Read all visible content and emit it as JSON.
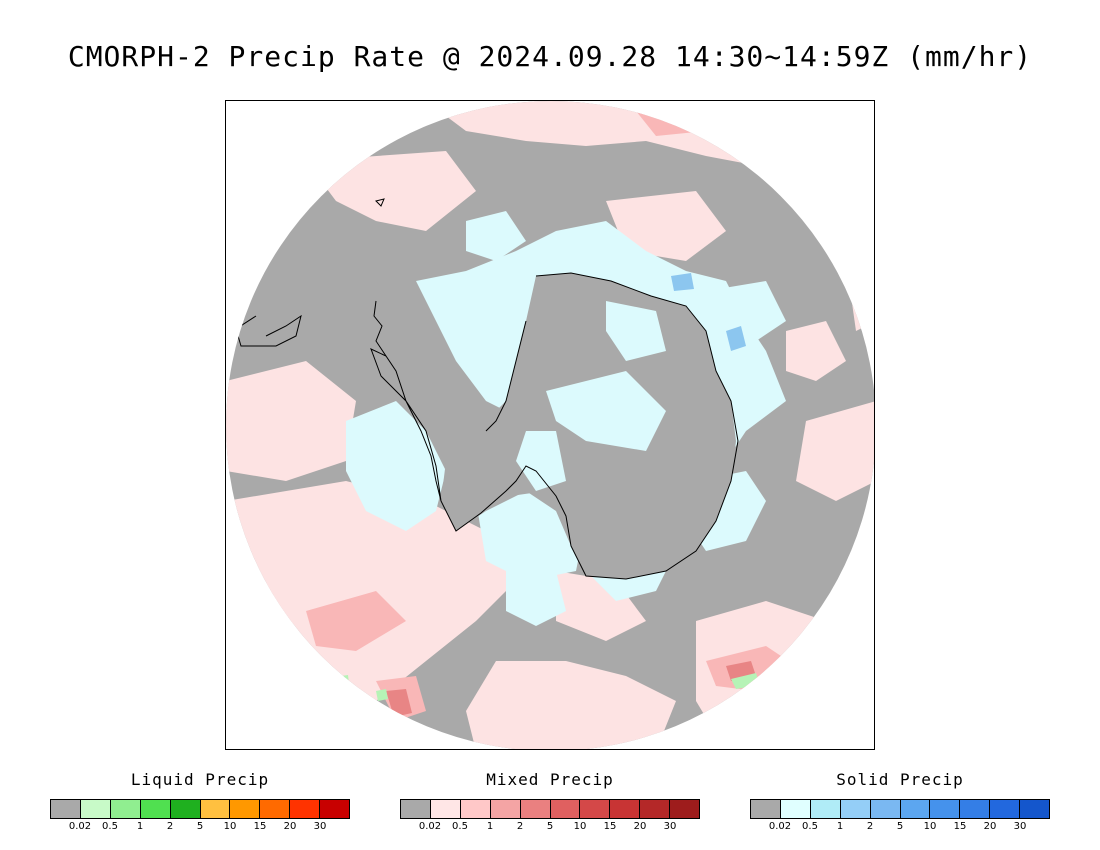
{
  "title": "CMORPH-2 Precip Rate @ 2024.09.28 14:30~14:59Z (mm/hr)",
  "map": {
    "projection": "south polar stereographic",
    "colors": {
      "no_precip": "#a9a9a9",
      "mixed_light": "#fde3e3",
      "mixed_mid": "#f9b7b7",
      "mixed_heavy": "#e88585",
      "solid_light": "#dcfafd",
      "solid_mid": "#aee4f7",
      "solid_heavy": "#8cc6ef",
      "liquid_light": "#b6f3b6",
      "coastline": "#000000",
      "outside": "#ffffff"
    }
  },
  "legends": [
    {
      "title": "Liquid Precip",
      "colors": [
        "#a9a9a9",
        "#c8fac8",
        "#90ee90",
        "#50e050",
        "#1fb01f",
        "#ffc040",
        "#ff9800",
        "#ff6a00",
        "#ff3300",
        "#c80000"
      ],
      "ticks": [
        "0.02",
        "0.5",
        "1",
        "2",
        "5",
        "10",
        "15",
        "20",
        "30"
      ]
    },
    {
      "title": "Mixed Precip",
      "colors": [
        "#a9a9a9",
        "#ffe6e6",
        "#ffc8c8",
        "#f4a4a4",
        "#ea8080",
        "#e06060",
        "#d44848",
        "#c83434",
        "#b42828",
        "#9e1c1c"
      ],
      "ticks": [
        "0.02",
        "0.5",
        "1",
        "2",
        "5",
        "10",
        "15",
        "20",
        "30"
      ]
    },
    {
      "title": "Solid Precip",
      "colors": [
        "#a9a9a9",
        "#e0ffff",
        "#b0ecf7",
        "#94cef7",
        "#7ab8f2",
        "#5ca6f0",
        "#4592ec",
        "#347ee6",
        "#2268de",
        "#1456cc"
      ],
      "ticks": [
        "0.02",
        "0.5",
        "1",
        "2",
        "5",
        "10",
        "15",
        "20",
        "30"
      ]
    }
  ]
}
